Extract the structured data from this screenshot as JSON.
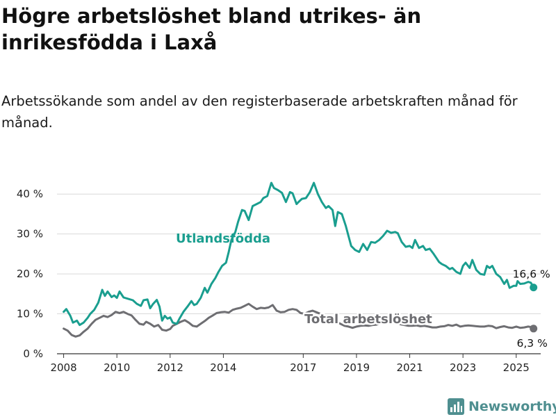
{
  "title": "Högre arbetslöshet bland utrikes- än inrikesfödda i Laxå",
  "subtitle": "Arbetssökande som andel av den registerbaserade arbetskraften månad för månad.",
  "brand": {
    "name": "Newsworthy",
    "icon": "bar-chart-logo-icon",
    "color": "#4f8f90"
  },
  "chart_data": {
    "type": "line",
    "x_unit": "year",
    "xlim": [
      2007.75,
      2025.92
    ],
    "ylim": [
      0,
      43
    ],
    "grid": "horizontal",
    "x_ticks": [
      {
        "value": 2008,
        "label": "2008"
      },
      {
        "value": 2010,
        "label": "2010"
      },
      {
        "value": 2012,
        "label": "2012"
      },
      {
        "value": 2014,
        "label": "2014"
      },
      {
        "value": 2017,
        "label": "2017"
      },
      {
        "value": 2019,
        "label": "2019"
      },
      {
        "value": 2021,
        "label": "2021"
      },
      {
        "value": 2023,
        "label": "2023"
      },
      {
        "value": 2025,
        "label": "2025"
      }
    ],
    "y_ticks": [
      {
        "value": 0,
        "label": "0 %"
      },
      {
        "value": 10,
        "label": "10 %"
      },
      {
        "value": 20,
        "label": "20 %"
      },
      {
        "value": 30,
        "label": "30 %"
      },
      {
        "value": 40,
        "label": "40 %"
      }
    ],
    "series": [
      {
        "name": "Utlandsfödda",
        "color": "#1a9e8f",
        "end_label": "16,6 %",
        "points": [
          [
            2008.0,
            10.5
          ],
          [
            2008.1,
            11.2
          ],
          [
            2008.25,
            9.5
          ],
          [
            2008.35,
            7.8
          ],
          [
            2008.5,
            8.3
          ],
          [
            2008.6,
            7.2
          ],
          [
            2008.75,
            7.8
          ],
          [
            2008.9,
            9.0
          ],
          [
            2009.0,
            10.0
          ],
          [
            2009.15,
            11.0
          ],
          [
            2009.3,
            12.8
          ],
          [
            2009.45,
            16.0
          ],
          [
            2009.55,
            14.5
          ],
          [
            2009.65,
            15.6
          ],
          [
            2009.8,
            14.2
          ],
          [
            2009.9,
            14.6
          ],
          [
            2010.0,
            14.0
          ],
          [
            2010.1,
            15.6
          ],
          [
            2010.25,
            14.1
          ],
          [
            2010.4,
            13.8
          ],
          [
            2010.6,
            13.4
          ],
          [
            2010.75,
            12.5
          ],
          [
            2010.9,
            12.0
          ],
          [
            2011.0,
            13.4
          ],
          [
            2011.15,
            13.6
          ],
          [
            2011.25,
            11.4
          ],
          [
            2011.35,
            12.4
          ],
          [
            2011.5,
            13.5
          ],
          [
            2011.6,
            11.8
          ],
          [
            2011.7,
            8.3
          ],
          [
            2011.8,
            9.5
          ],
          [
            2011.9,
            8.8
          ],
          [
            2012.0,
            9.1
          ],
          [
            2012.1,
            7.8
          ],
          [
            2012.25,
            7.5
          ],
          [
            2012.35,
            8.8
          ],
          [
            2012.5,
            10.5
          ],
          [
            2012.65,
            11.8
          ],
          [
            2012.8,
            13.2
          ],
          [
            2012.9,
            12.2
          ],
          [
            2013.0,
            12.5
          ],
          [
            2013.15,
            14.0
          ],
          [
            2013.3,
            16.5
          ],
          [
            2013.4,
            15.3
          ],
          [
            2013.55,
            17.5
          ],
          [
            2013.7,
            19.0
          ],
          [
            2013.8,
            20.3
          ],
          [
            2013.95,
            22.0
          ],
          [
            2014.1,
            22.8
          ],
          [
            2014.2,
            25.5
          ],
          [
            2014.3,
            28.5
          ],
          [
            2014.45,
            30.5
          ],
          [
            2014.55,
            33.0
          ],
          [
            2014.7,
            36.0
          ],
          [
            2014.8,
            35.8
          ],
          [
            2014.95,
            33.5
          ],
          [
            2015.1,
            37.0
          ],
          [
            2015.25,
            37.5
          ],
          [
            2015.4,
            38.0
          ],
          [
            2015.5,
            39.0
          ],
          [
            2015.65,
            39.5
          ],
          [
            2015.8,
            42.8
          ],
          [
            2015.9,
            41.5
          ],
          [
            2016.05,
            41.0
          ],
          [
            2016.2,
            40.3
          ],
          [
            2016.35,
            38.0
          ],
          [
            2016.5,
            40.5
          ],
          [
            2016.6,
            40.2
          ],
          [
            2016.75,
            37.5
          ],
          [
            2016.85,
            38.2
          ],
          [
            2016.95,
            38.8
          ],
          [
            2017.1,
            39.0
          ],
          [
            2017.25,
            40.5
          ],
          [
            2017.4,
            42.8
          ],
          [
            2017.55,
            40.0
          ],
          [
            2017.7,
            38.0
          ],
          [
            2017.85,
            36.5
          ],
          [
            2017.95,
            37.0
          ],
          [
            2018.1,
            36.0
          ],
          [
            2018.2,
            32.0
          ],
          [
            2018.3,
            35.5
          ],
          [
            2018.45,
            35.0
          ],
          [
            2018.6,
            32.0
          ],
          [
            2018.7,
            29.5
          ],
          [
            2018.8,
            27.0
          ],
          [
            2018.95,
            26.0
          ],
          [
            2019.1,
            25.5
          ],
          [
            2019.25,
            27.5
          ],
          [
            2019.4,
            26.0
          ],
          [
            2019.55,
            28.0
          ],
          [
            2019.7,
            27.8
          ],
          [
            2019.85,
            28.5
          ],
          [
            2020.0,
            29.5
          ],
          [
            2020.15,
            30.8
          ],
          [
            2020.3,
            30.3
          ],
          [
            2020.45,
            30.5
          ],
          [
            2020.55,
            30.2
          ],
          [
            2020.7,
            28.0
          ],
          [
            2020.85,
            26.8
          ],
          [
            2021.0,
            27.0
          ],
          [
            2021.1,
            26.5
          ],
          [
            2021.2,
            28.5
          ],
          [
            2021.35,
            26.5
          ],
          [
            2021.5,
            27.0
          ],
          [
            2021.6,
            26.0
          ],
          [
            2021.75,
            26.3
          ],
          [
            2021.9,
            25.0
          ],
          [
            2022.0,
            24.0
          ],
          [
            2022.1,
            23.0
          ],
          [
            2022.2,
            22.5
          ],
          [
            2022.35,
            22.0
          ],
          [
            2022.5,
            21.2
          ],
          [
            2022.6,
            21.5
          ],
          [
            2022.75,
            20.5
          ],
          [
            2022.9,
            20.0
          ],
          [
            2023.0,
            22.0
          ],
          [
            2023.1,
            22.8
          ],
          [
            2023.25,
            21.5
          ],
          [
            2023.35,
            23.5
          ],
          [
            2023.5,
            21.0
          ],
          [
            2023.65,
            20.0
          ],
          [
            2023.8,
            19.8
          ],
          [
            2023.9,
            22.0
          ],
          [
            2024.0,
            21.5
          ],
          [
            2024.1,
            22.0
          ],
          [
            2024.25,
            20.0
          ],
          [
            2024.4,
            19.2
          ],
          [
            2024.55,
            17.5
          ],
          [
            2024.65,
            18.5
          ],
          [
            2024.75,
            16.5
          ],
          [
            2024.9,
            17.0
          ],
          [
            2025.0,
            17.0
          ],
          [
            2025.05,
            18.2
          ],
          [
            2025.15,
            17.5
          ],
          [
            2025.3,
            17.6
          ],
          [
            2025.45,
            18.0
          ],
          [
            2025.55,
            17.8
          ],
          [
            2025.65,
            16.6
          ]
        ]
      },
      {
        "name": "Total arbetslöshet",
        "color": "#6e6e72",
        "end_label": "6,3 %",
        "points": [
          [
            2008.0,
            6.3
          ],
          [
            2008.15,
            5.8
          ],
          [
            2008.3,
            4.7
          ],
          [
            2008.45,
            4.3
          ],
          [
            2008.6,
            4.6
          ],
          [
            2008.75,
            5.5
          ],
          [
            2008.9,
            6.3
          ],
          [
            2009.05,
            7.5
          ],
          [
            2009.2,
            8.5
          ],
          [
            2009.35,
            9.0
          ],
          [
            2009.5,
            9.5
          ],
          [
            2009.65,
            9.2
          ],
          [
            2009.8,
            9.7
          ],
          [
            2009.95,
            10.5
          ],
          [
            2010.1,
            10.2
          ],
          [
            2010.25,
            10.5
          ],
          [
            2010.4,
            10.0
          ],
          [
            2010.55,
            9.6
          ],
          [
            2010.7,
            8.5
          ],
          [
            2010.85,
            7.5
          ],
          [
            2011.0,
            7.3
          ],
          [
            2011.1,
            8.0
          ],
          [
            2011.25,
            7.5
          ],
          [
            2011.4,
            6.8
          ],
          [
            2011.55,
            7.2
          ],
          [
            2011.7,
            6.0
          ],
          [
            2011.85,
            5.8
          ],
          [
            2012.0,
            6.2
          ],
          [
            2012.1,
            7.0
          ],
          [
            2012.25,
            7.5
          ],
          [
            2012.4,
            8.0
          ],
          [
            2012.55,
            8.4
          ],
          [
            2012.7,
            7.8
          ],
          [
            2012.85,
            7.0
          ],
          [
            2013.0,
            6.8
          ],
          [
            2013.15,
            7.5
          ],
          [
            2013.3,
            8.2
          ],
          [
            2013.45,
            9.0
          ],
          [
            2013.6,
            9.6
          ],
          [
            2013.75,
            10.2
          ],
          [
            2013.9,
            10.4
          ],
          [
            2014.05,
            10.5
          ],
          [
            2014.2,
            10.3
          ],
          [
            2014.35,
            11.0
          ],
          [
            2014.5,
            11.3
          ],
          [
            2014.65,
            11.5
          ],
          [
            2014.8,
            12.0
          ],
          [
            2014.95,
            12.5
          ],
          [
            2015.1,
            11.8
          ],
          [
            2015.25,
            11.2
          ],
          [
            2015.4,
            11.5
          ],
          [
            2015.55,
            11.4
          ],
          [
            2015.7,
            11.6
          ],
          [
            2015.85,
            12.2
          ],
          [
            2016.0,
            10.8
          ],
          [
            2016.15,
            10.4
          ],
          [
            2016.3,
            10.5
          ],
          [
            2016.45,
            11.0
          ],
          [
            2016.6,
            11.2
          ],
          [
            2016.75,
            11.0
          ],
          [
            2016.9,
            10.2
          ],
          [
            2017.05,
            10.0
          ],
          [
            2017.2,
            10.5
          ],
          [
            2017.35,
            10.8
          ],
          [
            2017.5,
            10.4
          ],
          [
            2017.65,
            10.0
          ],
          [
            2017.8,
            9.5
          ],
          [
            2017.95,
            9.0
          ],
          [
            2018.1,
            8.5
          ],
          [
            2018.25,
            8.0
          ],
          [
            2018.4,
            7.5
          ],
          [
            2018.55,
            7.0
          ],
          [
            2018.7,
            6.8
          ],
          [
            2018.85,
            6.5
          ],
          [
            2019.0,
            6.8
          ],
          [
            2019.15,
            7.0
          ],
          [
            2019.3,
            7.1
          ],
          [
            2019.45,
            7.0
          ],
          [
            2019.6,
            7.2
          ],
          [
            2019.75,
            7.3
          ],
          [
            2019.9,
            7.6
          ],
          [
            2020.05,
            7.8
          ],
          [
            2020.2,
            7.9
          ],
          [
            2020.35,
            7.7
          ],
          [
            2020.5,
            7.8
          ],
          [
            2020.65,
            7.4
          ],
          [
            2020.8,
            7.2
          ],
          [
            2020.95,
            7.0
          ],
          [
            2021.1,
            7.0
          ],
          [
            2021.25,
            7.1
          ],
          [
            2021.4,
            6.9
          ],
          [
            2021.55,
            7.0
          ],
          [
            2021.7,
            6.8
          ],
          [
            2021.85,
            6.6
          ],
          [
            2022.0,
            6.6
          ],
          [
            2022.15,
            6.8
          ],
          [
            2022.3,
            6.9
          ],
          [
            2022.45,
            7.2
          ],
          [
            2022.6,
            7.0
          ],
          [
            2022.75,
            7.3
          ],
          [
            2022.9,
            6.8
          ],
          [
            2023.05,
            7.0
          ],
          [
            2023.2,
            7.1
          ],
          [
            2023.35,
            7.0
          ],
          [
            2023.5,
            6.9
          ],
          [
            2023.65,
            6.8
          ],
          [
            2023.8,
            6.8
          ],
          [
            2023.95,
            7.0
          ],
          [
            2024.1,
            6.9
          ],
          [
            2024.25,
            6.4
          ],
          [
            2024.4,
            6.7
          ],
          [
            2024.55,
            6.9
          ],
          [
            2024.7,
            6.6
          ],
          [
            2024.85,
            6.5
          ],
          [
            2025.0,
            6.8
          ],
          [
            2025.15,
            6.5
          ],
          [
            2025.3,
            6.6
          ],
          [
            2025.45,
            6.8
          ],
          [
            2025.55,
            6.7
          ],
          [
            2025.65,
            6.3
          ]
        ]
      }
    ]
  }
}
